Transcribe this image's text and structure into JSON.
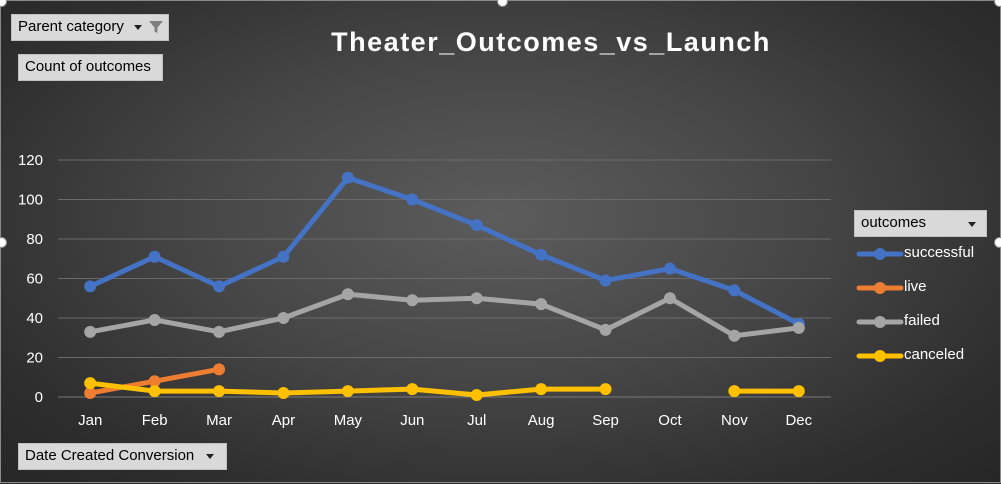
{
  "filters": {
    "parent_category": "Parent category",
    "values_field": "Count of outcomes",
    "axis_field": "Date Created Conversion",
    "legend_field": "outcomes"
  },
  "icons": {
    "filter": "funnel-filter-icon",
    "dropdown": "dropdown-arrow-icon"
  },
  "colors": {
    "successful": "#4472c4",
    "live": "#ed7d31",
    "failed": "#a5a5a5",
    "canceled": "#ffc000"
  },
  "chart_data": {
    "type": "line",
    "title": "Theater_Outcomes_vs_Launch",
    "xlabel": "",
    "ylabel": "",
    "categories": [
      "Jan",
      "Feb",
      "Mar",
      "Apr",
      "May",
      "Jun",
      "Jul",
      "Aug",
      "Sep",
      "Oct",
      "Nov",
      "Dec"
    ],
    "ylim": [
      0,
      120
    ],
    "yticks": [
      0,
      20,
      40,
      60,
      80,
      100,
      120
    ],
    "grid": true,
    "legend_position": "right",
    "series": [
      {
        "name": "successful",
        "values": [
          56,
          71,
          56,
          71,
          111,
          100,
          87,
          72,
          59,
          65,
          54,
          37
        ]
      },
      {
        "name": "live",
        "values": [
          2,
          8,
          14,
          null,
          null,
          null,
          null,
          null,
          null,
          null,
          null,
          null
        ]
      },
      {
        "name": "failed",
        "values": [
          33,
          39,
          33,
          40,
          52,
          49,
          50,
          47,
          34,
          50,
          31,
          35
        ]
      },
      {
        "name": "canceled",
        "values": [
          7,
          3,
          3,
          2,
          3,
          4,
          1,
          4,
          4,
          null,
          3,
          3
        ]
      }
    ]
  }
}
